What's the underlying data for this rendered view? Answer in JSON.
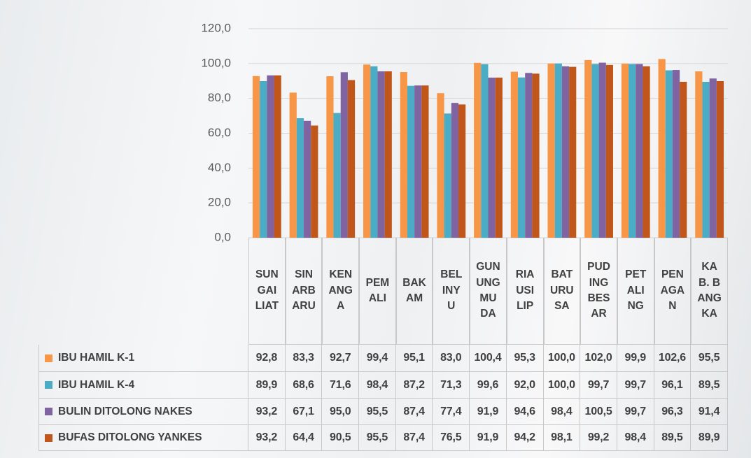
{
  "chart_data": {
    "type": "bar",
    "categories": [
      "SUNGAILIAT",
      "SINARBARU",
      "KENANGA",
      "PEMALI",
      "BAKAM",
      "BELINYU",
      "GUNUNGMUDA",
      "RIAUSILIP",
      "BATURUSA",
      "PUDINGBESAR",
      "PETALING",
      "PENAGAN",
      "KAB. BANGKA"
    ],
    "series": [
      {
        "name": "IBU HAMIL K-1",
        "color": "#f79646",
        "values": [
          92.8,
          83.3,
          92.7,
          99.4,
          95.1,
          83.0,
          100.4,
          95.3,
          100.0,
          102.0,
          99.9,
          102.6,
          95.5
        ],
        "value_labels": [
          "92,8",
          "83,3",
          "92,7",
          "99,4",
          "95,1",
          "83,0",
          "100,4",
          "95,3",
          "100,0",
          "102,0",
          "99,9",
          "102,6",
          "95,5"
        ]
      },
      {
        "name": "IBU HAMIL K-4",
        "color": "#4bacc6",
        "values": [
          89.9,
          68.6,
          71.6,
          98.4,
          87.2,
          71.3,
          99.6,
          92.0,
          100.0,
          99.7,
          99.7,
          96.1,
          89.5
        ],
        "value_labels": [
          "89,9",
          "68,6",
          "71,6",
          "98,4",
          "87,2",
          "71,3",
          "99,6",
          "92,0",
          "100,0",
          "99,7",
          "99,7",
          "96,1",
          "89,5"
        ]
      },
      {
        "name": "BULIN DITOLONG NAKES",
        "color": "#8064a2",
        "values": [
          93.2,
          67.1,
          95.0,
          95.5,
          87.4,
          77.4,
          91.9,
          94.6,
          98.4,
          100.5,
          99.7,
          96.3,
          91.4
        ],
        "value_labels": [
          "93,2",
          "67,1",
          "95,0",
          "95,5",
          "87,4",
          "77,4",
          "91,9",
          "94,6",
          "98,4",
          "100,5",
          "99,7",
          "96,3",
          "91,4"
        ]
      },
      {
        "name": "BUFAS DITOLONG YANKES",
        "color": "#c0561a",
        "values": [
          93.2,
          64.4,
          90.5,
          95.5,
          87.4,
          76.5,
          91.9,
          94.2,
          98.1,
          99.2,
          98.4,
          89.5,
          89.9
        ],
        "value_labels": [
          "93,2",
          "64,4",
          "90,5",
          "95,5",
          "87,4",
          "76,5",
          "91,9",
          "94,2",
          "98,1",
          "99,2",
          "98,4",
          "89,5",
          "89,9"
        ]
      }
    ],
    "ylim": [
      0,
      120
    ],
    "yticks": [
      {
        "value": 0,
        "label": "0,0"
      },
      {
        "value": 20,
        "label": "20,0"
      },
      {
        "value": 40,
        "label": "40,0"
      },
      {
        "value": 60,
        "label": "60,0"
      },
      {
        "value": 80,
        "label": "80,0"
      },
      {
        "value": 100,
        "label": "100,0"
      },
      {
        "value": 120,
        "label": "120,0"
      }
    ],
    "grid": true
  }
}
